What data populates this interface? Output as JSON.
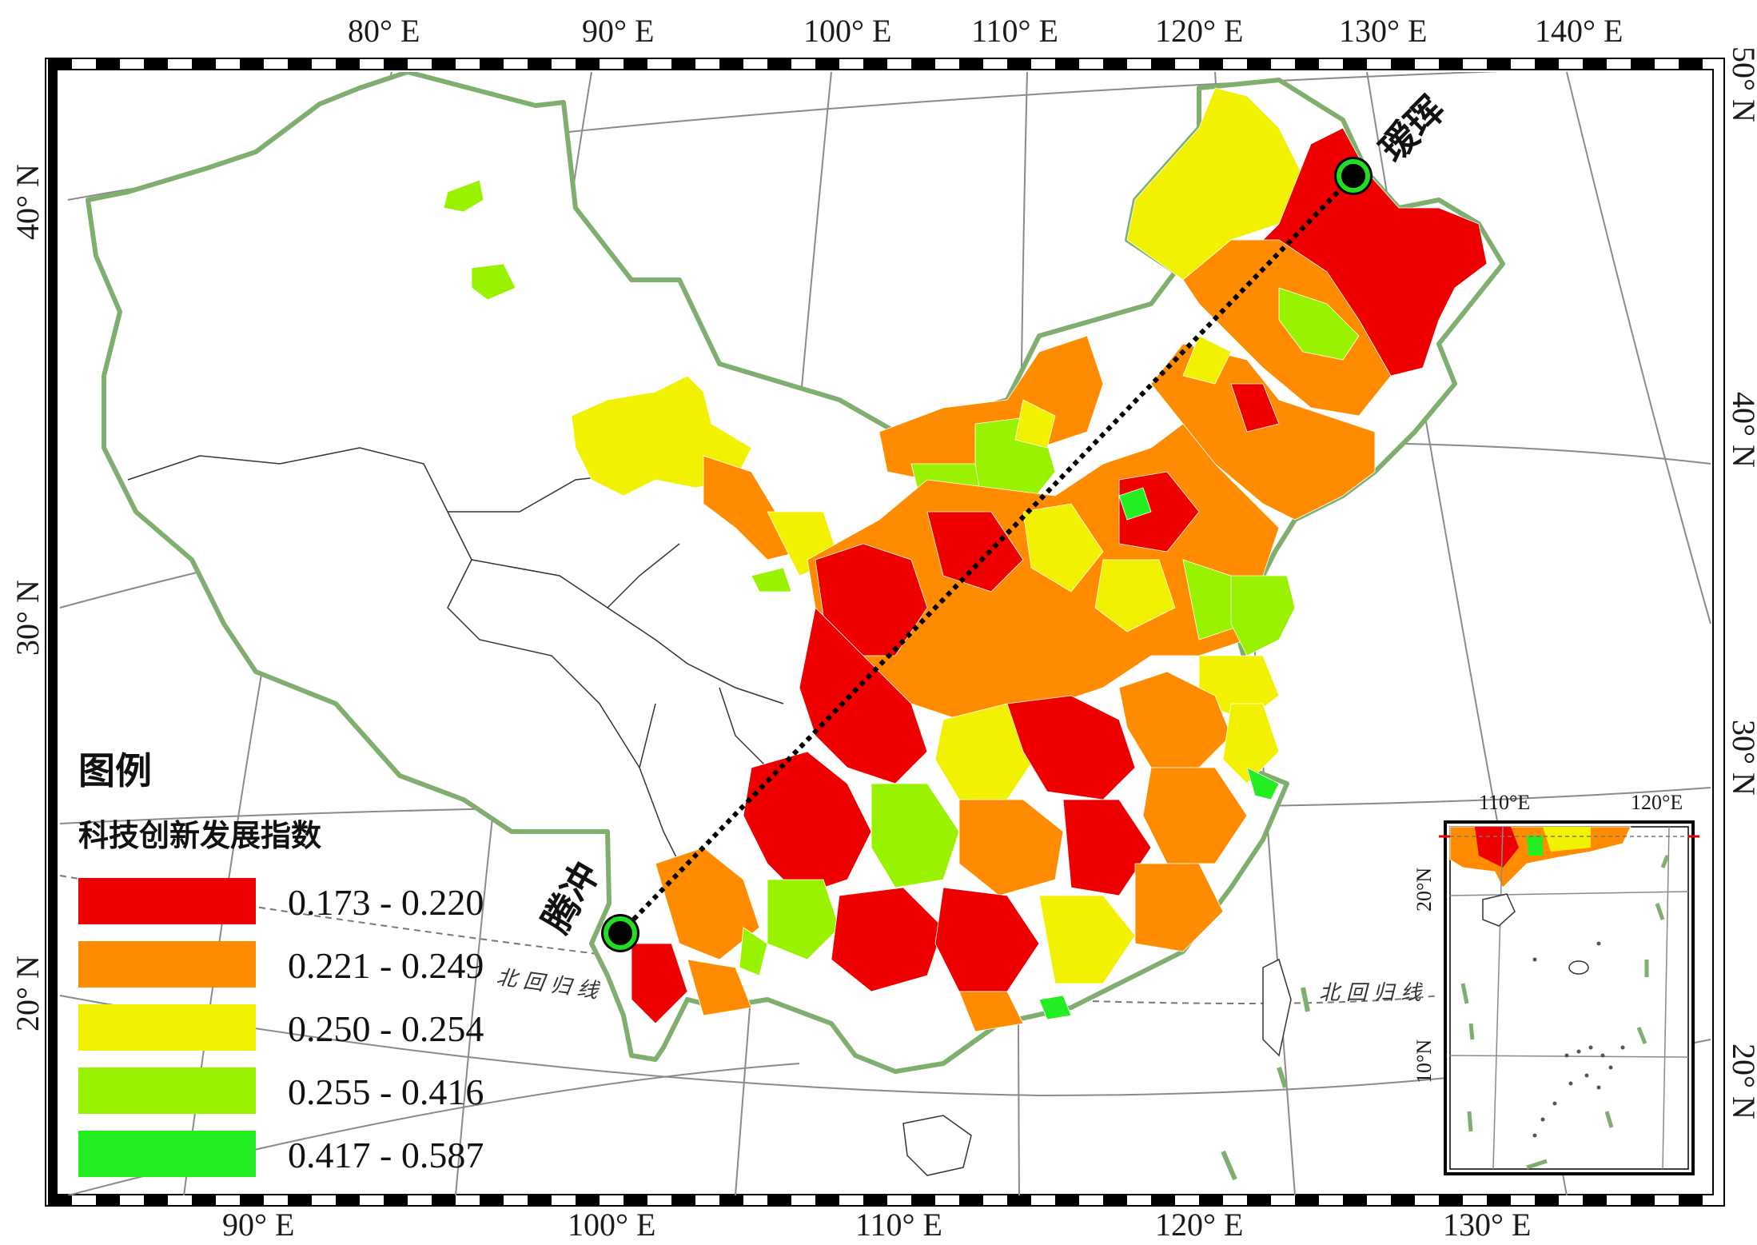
{
  "legend": {
    "title": "图例",
    "subtitle": "科技创新发展指数",
    "classes": [
      {
        "label": "0.173 - 0.220",
        "color": "#ee0000"
      },
      {
        "label": "0.221 - 0.249",
        "color": "#ff8c00"
      },
      {
        "label": "0.250 - 0.254",
        "color": "#f2f200"
      },
      {
        "label": "0.255 - 0.416",
        "color": "#99f200"
      },
      {
        "label": "0.417 - 0.587",
        "color": "#22ee22"
      }
    ]
  },
  "cities": {
    "aihui": "瑷珲",
    "tengchong": "腾冲"
  },
  "tropic_label": "北回归线",
  "graticule": {
    "top": [
      "80° E",
      "90° E",
      "100° E",
      "110° E",
      "120° E",
      "130° E",
      "140° E"
    ],
    "bottom": [
      "90° E",
      "100° E",
      "110° E",
      "120° E",
      "130° E"
    ],
    "left": [
      "40° N",
      "30° N",
      "20° N"
    ],
    "right": [
      "50° N",
      "40° N",
      "30° N",
      "20° N"
    ]
  },
  "inset": {
    "top": [
      "110°E",
      "120°E"
    ],
    "left": [
      "20°N",
      "10°N"
    ]
  },
  "colors": {
    "boundary": "#7fae6e",
    "graticule": "#8a8a8a",
    "marker_ring": "#22dd22",
    "line": "#000000"
  }
}
